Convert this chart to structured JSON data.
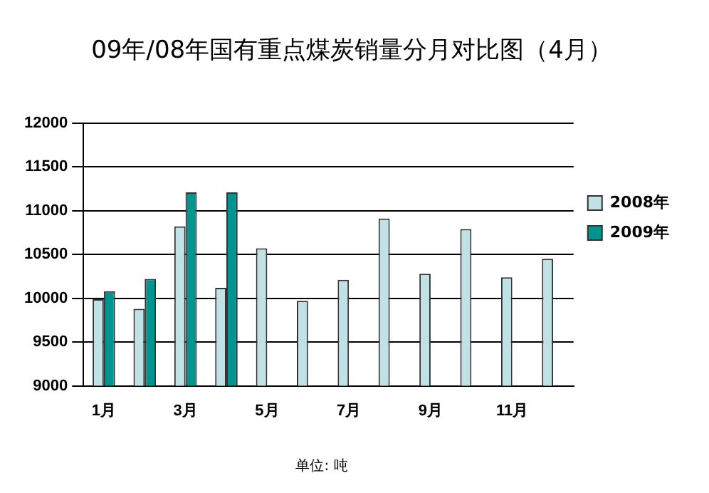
{
  "chart_data": {
    "type": "bar",
    "title": "09年/08年国有重点煤炭销量分月对比图（4月）",
    "categories": [
      "1月",
      null,
      "3月",
      null,
      "5月",
      null,
      "7月",
      null,
      "9月",
      null,
      "11月",
      null
    ],
    "series": [
      {
        "name": "2008年",
        "color": "#c0e2e6",
        "values": [
          9990,
          9880,
          10820,
          10120,
          10570,
          9970,
          10210,
          10910,
          10280,
          10790,
          10240,
          10450
        ]
      },
      {
        "name": "2009年",
        "color": "#009490",
        "values": [
          10080,
          10220,
          11210,
          11210,
          null,
          null,
          null,
          null,
          null,
          null,
          null,
          null
        ]
      }
    ],
    "ylim": [
      9000,
      12000
    ],
    "yticks": [
      9000,
      9500,
      10000,
      10500,
      11000,
      11500,
      12000
    ],
    "grid": "y",
    "legend": "right",
    "annotations": [
      "单位: 吨"
    ]
  }
}
